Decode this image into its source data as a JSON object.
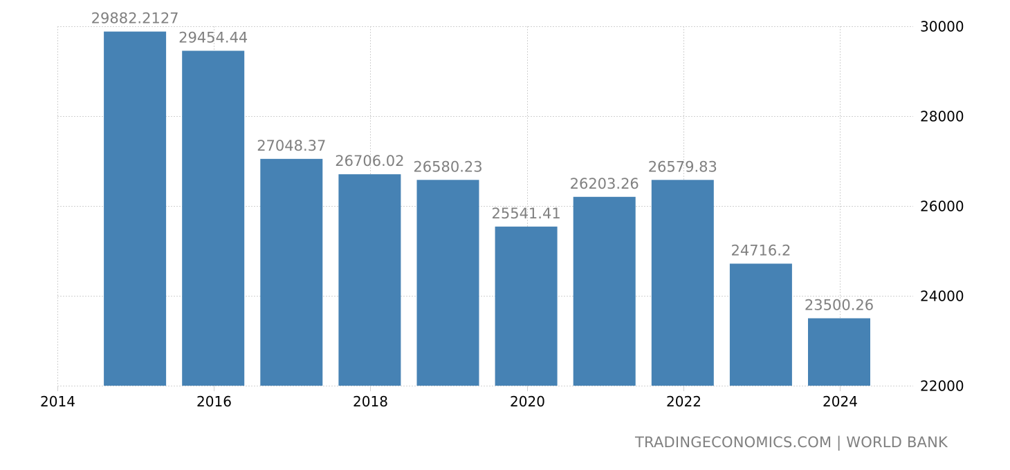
{
  "chart_data": {
    "type": "bar",
    "title": "",
    "xlabel": "",
    "ylabel": "",
    "categories": [
      "2015",
      "2016",
      "2017",
      "2018",
      "2019",
      "2020",
      "2021",
      "2022",
      "2023",
      "2024"
    ],
    "values": [
      29882.2127,
      29454.44,
      27048.37,
      26706.02,
      26580.23,
      25541.41,
      26203.26,
      26579.83,
      24716.2,
      23500.26
    ],
    "value_labels": [
      "29882.2127",
      "29454.44",
      "27048.37",
      "26706.02",
      "26580.23",
      "25541.41",
      "26203.26",
      "26579.83",
      "24716.2",
      "23500.26"
    ],
    "ylim": [
      22000,
      30000
    ],
    "yticks": [
      "22000",
      "24000",
      "26000",
      "28000",
      "30000"
    ],
    "xticks": [
      "2014",
      "2016",
      "2018",
      "2020",
      "2022",
      "2024"
    ],
    "grid": true,
    "y_axis_position": "right",
    "bar_color": "#4682b4",
    "label_color": "#808080"
  },
  "footer": {
    "source": "TRADINGECONOMICS.COM | WORLD BANK"
  }
}
